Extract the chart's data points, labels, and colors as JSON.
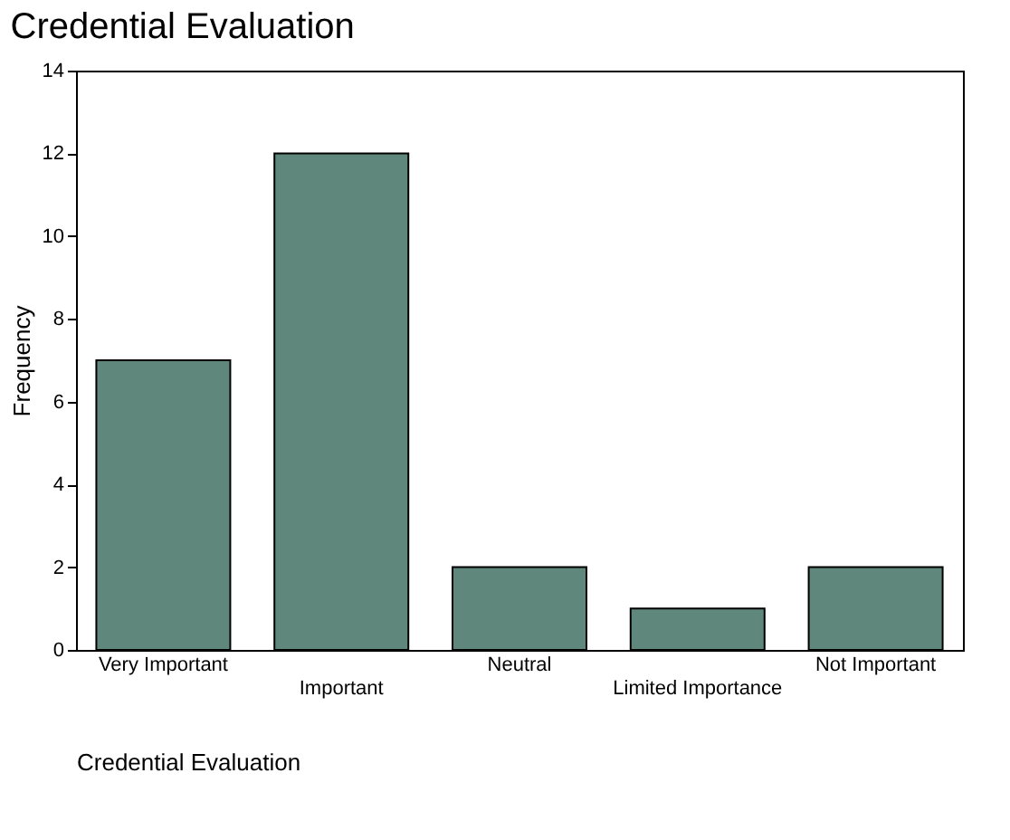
{
  "chart_data": {
    "type": "bar",
    "title": "Credential Evaluation",
    "xlabel": "Credential Evaluation",
    "ylabel": "Frequency",
    "categories": [
      "Very Important",
      "Important",
      "Neutral",
      "Limited Importance",
      "Not Important"
    ],
    "values": [
      7,
      12,
      2,
      1,
      2
    ],
    "color": "#5f877b",
    "ylim": [
      0,
      14
    ],
    "yticks": [
      0,
      2,
      4,
      6,
      8,
      10,
      12,
      14
    ],
    "grid": false
  }
}
